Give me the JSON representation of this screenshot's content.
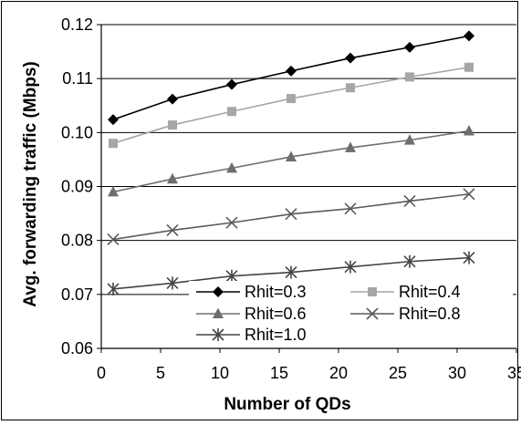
{
  "chart_data": {
    "type": "line",
    "title": "",
    "xlabel": "Number of QDs",
    "ylabel": "Avg. forwarding traffic (Mbps)",
    "xlim": [
      0,
      35
    ],
    "ylim": [
      0.06,
      0.12
    ],
    "x_ticks": [
      0,
      5,
      10,
      15,
      20,
      25,
      30,
      35
    ],
    "y_ticks": [
      0.06,
      0.07,
      0.08,
      0.09,
      0.1,
      0.11,
      0.12
    ],
    "x_tick_labels": [
      "0",
      "5",
      "10",
      "15",
      "20",
      "25",
      "30",
      "35"
    ],
    "y_tick_labels": [
      "0.06",
      "0.07",
      "0.08",
      "0.09",
      "0.10",
      "0.11",
      "0.12"
    ],
    "grid": "horizontal",
    "legend_position": "bottom-right inside plot",
    "x": [
      1,
      6,
      11,
      16,
      21,
      26,
      31
    ],
    "series": [
      {
        "name": "Rhit=0.3",
        "marker": "diamond",
        "color": "#000000",
        "values": [
          0.1024,
          0.1062,
          0.1089,
          0.1114,
          0.1138,
          0.1158,
          0.1179
        ]
      },
      {
        "name": "Rhit=0.4",
        "marker": "square",
        "color": "#a6a6a6",
        "values": [
          0.098,
          0.1014,
          0.1039,
          0.1063,
          0.1083,
          0.1103,
          0.1121
        ]
      },
      {
        "name": "Rhit=0.6",
        "marker": "triangle",
        "color": "#6e6e6e",
        "values": [
          0.089,
          0.0914,
          0.0934,
          0.0955,
          0.0972,
          0.0986,
          0.1003
        ]
      },
      {
        "name": "Rhit=0.8",
        "marker": "x",
        "color": "#5a5a5a",
        "values": [
          0.0802,
          0.0819,
          0.0833,
          0.0849,
          0.0859,
          0.0873,
          0.0886
        ]
      },
      {
        "name": "Rhit=1.0",
        "marker": "star",
        "color": "#444444",
        "values": [
          0.071,
          0.0721,
          0.0734,
          0.0741,
          0.0751,
          0.0761,
          0.0768
        ]
      }
    ]
  }
}
